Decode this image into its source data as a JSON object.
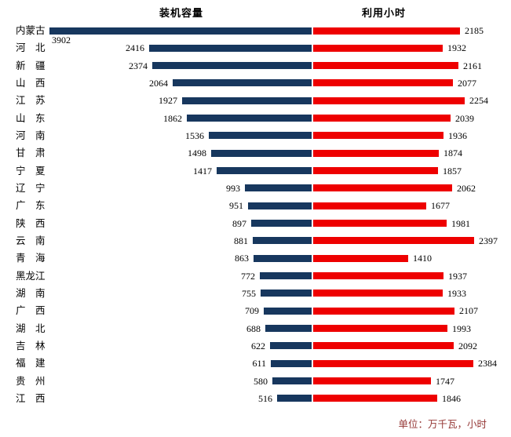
{
  "titles": {
    "left": "装机容量",
    "right": "利用小时"
  },
  "footer": {
    "unit_label": "单位：万千瓦，小时"
  },
  "colors": {
    "capacity_bar": "#17375e",
    "hours_bar": "#ee0000",
    "footer_text": "#943634",
    "text": "#000000",
    "background": "#ffffff"
  },
  "chart_data": {
    "type": "bar",
    "orientation": "horizontal",
    "layout": "bidirectional-tornado",
    "value_labels": true,
    "grid": false,
    "legend_position": "column-headers-top",
    "unit_note": "单位：万千瓦，小时",
    "categories": [
      "内蒙古",
      "河北",
      "新疆",
      "山西",
      "江苏",
      "山东",
      "河南",
      "甘肃",
      "宁夏",
      "辽宁",
      "广东",
      "陕西",
      "云南",
      "青海",
      "黑龙江",
      "湖南",
      "广西",
      "湖北",
      "吉林",
      "福建",
      "贵州",
      "江西"
    ],
    "series": [
      {
        "name": "装机容量",
        "side": "left",
        "color": "#17375e",
        "values": [
          3902,
          2416,
          2374,
          2064,
          1927,
          1862,
          1536,
          1498,
          1417,
          993,
          951,
          897,
          881,
          863,
          772,
          755,
          709,
          688,
          622,
          611,
          580,
          516
        ]
      },
      {
        "name": "利用小时",
        "side": "right",
        "color": "#ee0000",
        "values": [
          2185,
          1932,
          2161,
          2077,
          2254,
          2039,
          1936,
          1874,
          1857,
          2062,
          1677,
          1981,
          2397,
          1410,
          1937,
          1933,
          2107,
          1993,
          2092,
          2384,
          1747,
          1846
        ]
      }
    ],
    "xlim_left": [
      0,
      3902
    ],
    "xlim_right": [
      0,
      2397
    ]
  }
}
